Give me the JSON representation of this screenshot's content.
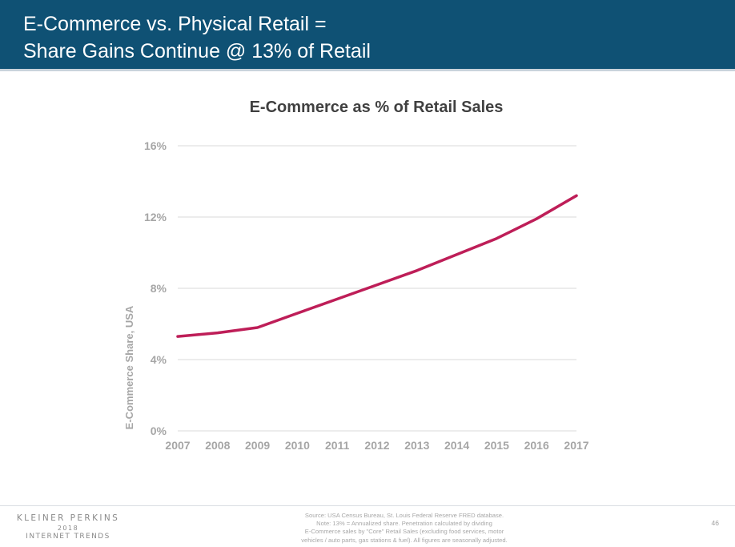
{
  "slide": {
    "title_line1": "E-Commerce vs. Physical Retail =",
    "title_line2": "Share Gains Continue @ 13% of Retail",
    "brand_line1": "KLEINER PERKINS",
    "brand_line2": "2018",
    "brand_line3": "INTERNET TRENDS",
    "source_lines": [
      "Source: USA Census Bureau, St. Louis Federal Reserve FRED database.",
      "Note: 13% = Annualized share.  Penetration calculated by dividing",
      "E-Commerce sales by \"Core\" Retail Sales (excluding food services, motor",
      "vehicles / auto parts, gas stations & fuel). All figures are seasonally adjusted."
    ],
    "page_number": "46"
  },
  "colors": {
    "header_bg": "#0f5174",
    "line": "#be1e58",
    "grid": "#d9d9d9",
    "axis_text": "#a6a6a6",
    "title_text": "#404040"
  },
  "chart_data": {
    "type": "line",
    "title": "E-Commerce as % of Retail Sales",
    "xlabel": "",
    "ylabel": "E-Commerce Share, USA",
    "x": [
      "2007",
      "2008",
      "2009",
      "2010",
      "2011",
      "2012",
      "2013",
      "2014",
      "2015",
      "2016",
      "2017"
    ],
    "series": [
      {
        "name": "",
        "values": [
          5.3,
          5.5,
          5.8,
          6.6,
          7.4,
          8.2,
          9.0,
          9.9,
          10.8,
          11.9,
          13.2
        ]
      }
    ],
    "yticks": [
      {
        "value": 0,
        "label": "0%"
      },
      {
        "value": 4,
        "label": "4%"
      },
      {
        "value": 8,
        "label": "8%"
      },
      {
        "value": 12,
        "label": "12%"
      },
      {
        "value": 16,
        "label": "16%"
      }
    ],
    "ylim": [
      0,
      16
    ],
    "grid": true,
    "legend": "none"
  }
}
